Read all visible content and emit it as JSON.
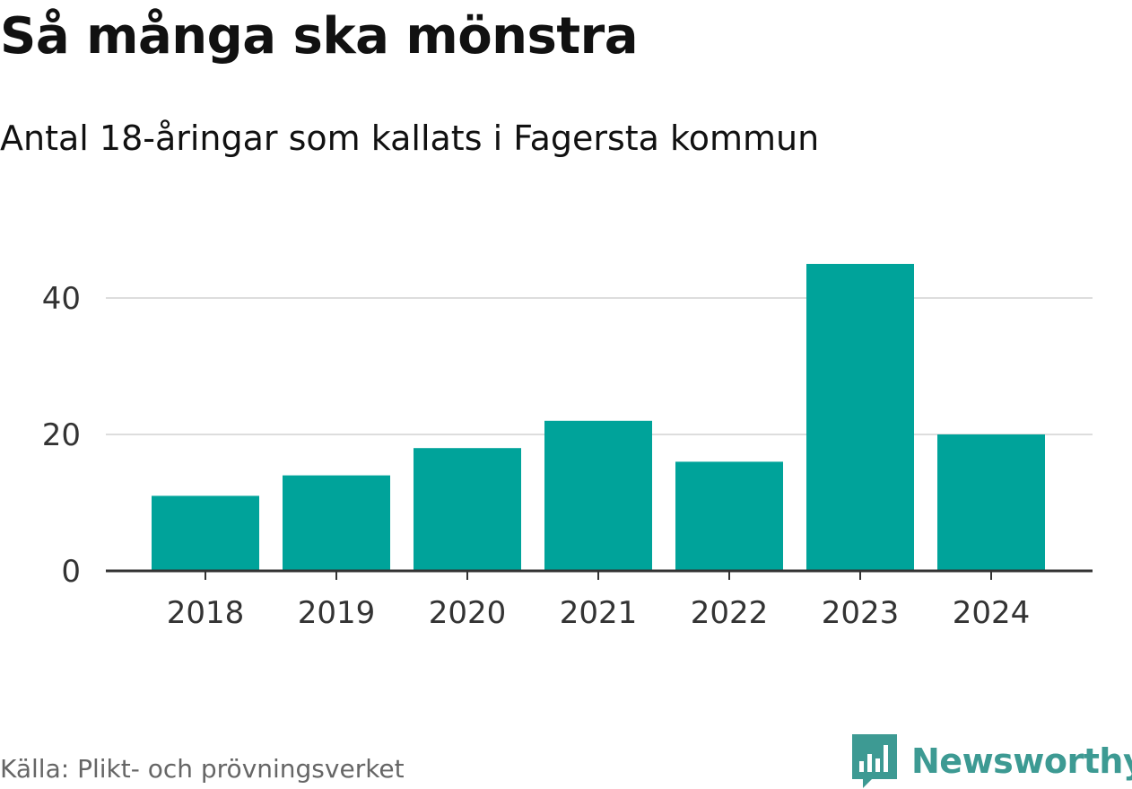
{
  "chart_data": {
    "type": "bar",
    "title": "Så många ska mönstra",
    "subtitle": "Antal 18-åringar som kallats i Fagersta kommun",
    "categories": [
      "2018",
      "2019",
      "2020",
      "2021",
      "2022",
      "2023",
      "2024"
    ],
    "values": [
      11,
      14,
      18,
      22,
      16,
      45,
      20
    ],
    "yticks": [
      0,
      20,
      40
    ],
    "ylim": [
      0,
      48
    ],
    "xlabel": "",
    "ylabel": "",
    "grid": true,
    "bar_color": "#00a39a",
    "source": "Källa: Plikt- och prövningsverket"
  },
  "branding": {
    "name": "Newsworthy",
    "color": "#3d9a93",
    "icon": "newsworthy-logo-icon"
  }
}
